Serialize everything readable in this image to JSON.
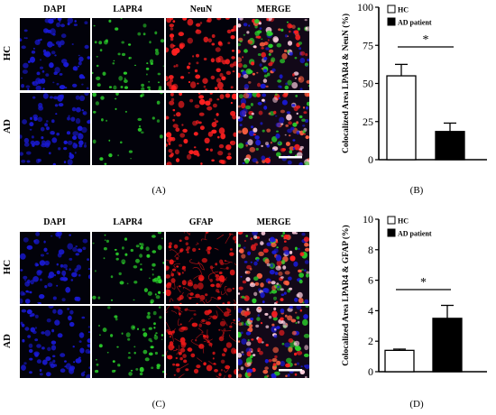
{
  "figure": {
    "panel_labels": {
      "A": "(A)",
      "B": "(B)",
      "C": "(C)",
      "D": "(D)"
    },
    "top_grid": {
      "column_headers": [
        "DAPI",
        "LAPR4",
        "NeuN",
        "MERGE"
      ],
      "row_labels": [
        "HC",
        "AD"
      ]
    },
    "bottom_grid": {
      "column_headers": [
        "DAPI",
        "LAPR4",
        "GFAP",
        "MERGE"
      ],
      "row_labels": [
        "HC",
        "AD"
      ]
    },
    "colors": {
      "dapi": "#1a1ad8",
      "lapr4": "#2bd12b",
      "neun": "#ff2020",
      "gfap": "#e81818",
      "merge_bg": "#120818",
      "tile_bg": "#02020a"
    }
  },
  "chart_data": [
    {
      "type": "bar",
      "ylabel": "Colocalized Area LPAR4 & NeuN (%)",
      "ylim": [
        0,
        100
      ],
      "yticks": [
        0,
        25,
        50,
        75,
        100
      ],
      "categories": [
        "HC",
        "AD patient"
      ],
      "values": [
        55,
        18.5
      ],
      "errors": [
        7.5,
        5.5
      ],
      "fills": [
        "#ffffff",
        "#000000"
      ],
      "legend": [
        "HC",
        "AD patient"
      ],
      "significance": "*"
    },
    {
      "type": "bar",
      "ylabel": "Colocalized Area LPAR4 & GFAP (%)",
      "ylim": [
        0,
        10
      ],
      "yticks": [
        0,
        2,
        4,
        6,
        8,
        10
      ],
      "categories": [
        "HC",
        "AD patient"
      ],
      "values": [
        1.4,
        3.5
      ],
      "errors": [
        0.08,
        0.85
      ],
      "fills": [
        "#ffffff",
        "#000000"
      ],
      "legend": [
        "HC",
        "AD patient"
      ],
      "significance": "*"
    }
  ]
}
